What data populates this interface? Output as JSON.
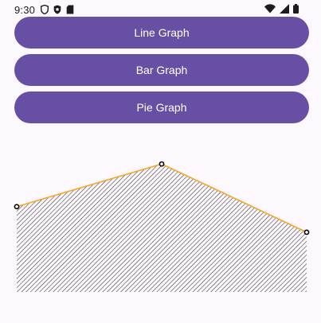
{
  "status_bar": {
    "time": "9:30",
    "icons_left": [
      "shield-icon",
      "shield-dot-icon",
      "sd-card-icon"
    ],
    "icons_right": [
      "wifi-icon",
      "signal-icon",
      "battery-icon"
    ]
  },
  "buttons": {
    "line_graph": "Line Graph",
    "bar_graph": "Bar Graph",
    "pie_graph": "Pie Graph"
  },
  "colors": {
    "button": "#6750a4",
    "background": "#fdf7fe",
    "line": "#f5a623",
    "fill_hatch": "#333333",
    "point_stroke": "#000000"
  },
  "chart_data": {
    "type": "area",
    "x": [
      0,
      1,
      2
    ],
    "values": [
      2.0,
      3.0,
      1.4
    ],
    "ylim": [
      0,
      3.3
    ],
    "grid": false,
    "legend": "none"
  }
}
